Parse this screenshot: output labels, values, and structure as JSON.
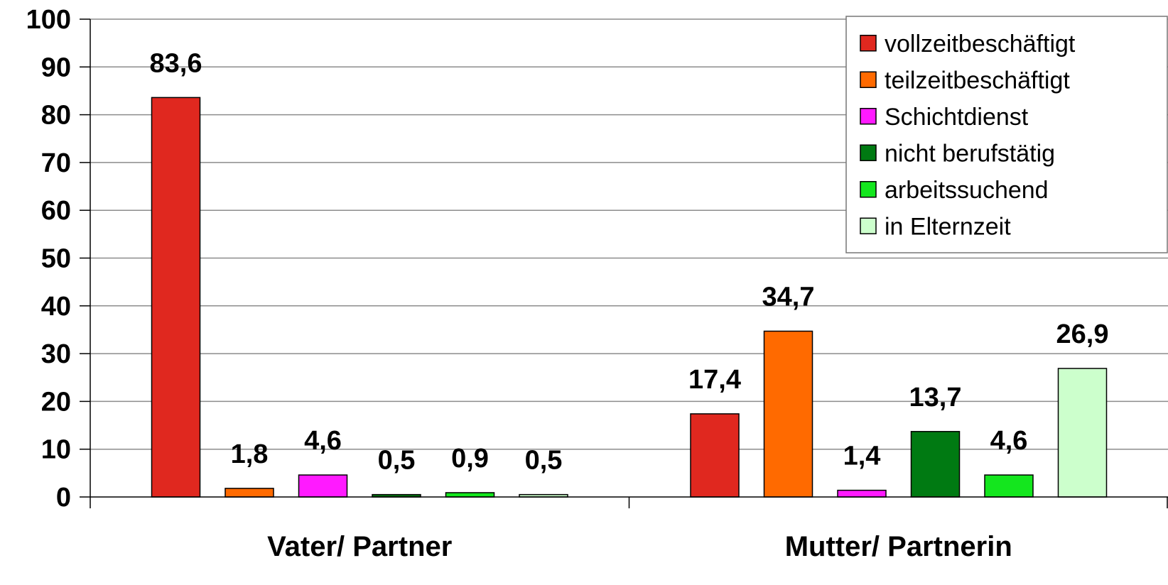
{
  "chart_data": {
    "type": "bar",
    "title": "",
    "xlabel": "",
    "ylabel": "",
    "ylim": [
      0,
      100
    ],
    "yticks": [
      0,
      10,
      20,
      30,
      40,
      50,
      60,
      70,
      80,
      90,
      100
    ],
    "grid": true,
    "legend_position": "top-right",
    "categories": [
      "Vater/ Partner",
      "Mutter/ Partnerin"
    ],
    "series": [
      {
        "name": "vollzeitbeschäftigt",
        "color": "#e0281f",
        "values": [
          83.6,
          17.4
        ],
        "labels": [
          "83,6",
          "17,4"
        ]
      },
      {
        "name": "teilzeitbeschäftigt",
        "color": "#ff6a00",
        "values": [
          1.8,
          34.7
        ],
        "labels": [
          "1,8",
          "34,7"
        ]
      },
      {
        "name": "Schichtdienst",
        "color": "#ff1aff",
        "values": [
          4.6,
          1.4
        ],
        "labels": [
          "4,6",
          "1,4"
        ]
      },
      {
        "name": "nicht berufstätig",
        "color": "#007a12",
        "values": [
          0.5,
          13.7
        ],
        "labels": [
          "0,5",
          "13,7"
        ]
      },
      {
        "name": "arbeitssuchend",
        "color": "#14e61e",
        "values": [
          0.9,
          4.6
        ],
        "labels": [
          "0,9",
          "4,6"
        ]
      },
      {
        "name": "in Elternzeit",
        "color": "#ccffcc",
        "values": [
          0.5,
          26.9
        ],
        "labels": [
          "0,5",
          "26,9"
        ]
      }
    ]
  }
}
